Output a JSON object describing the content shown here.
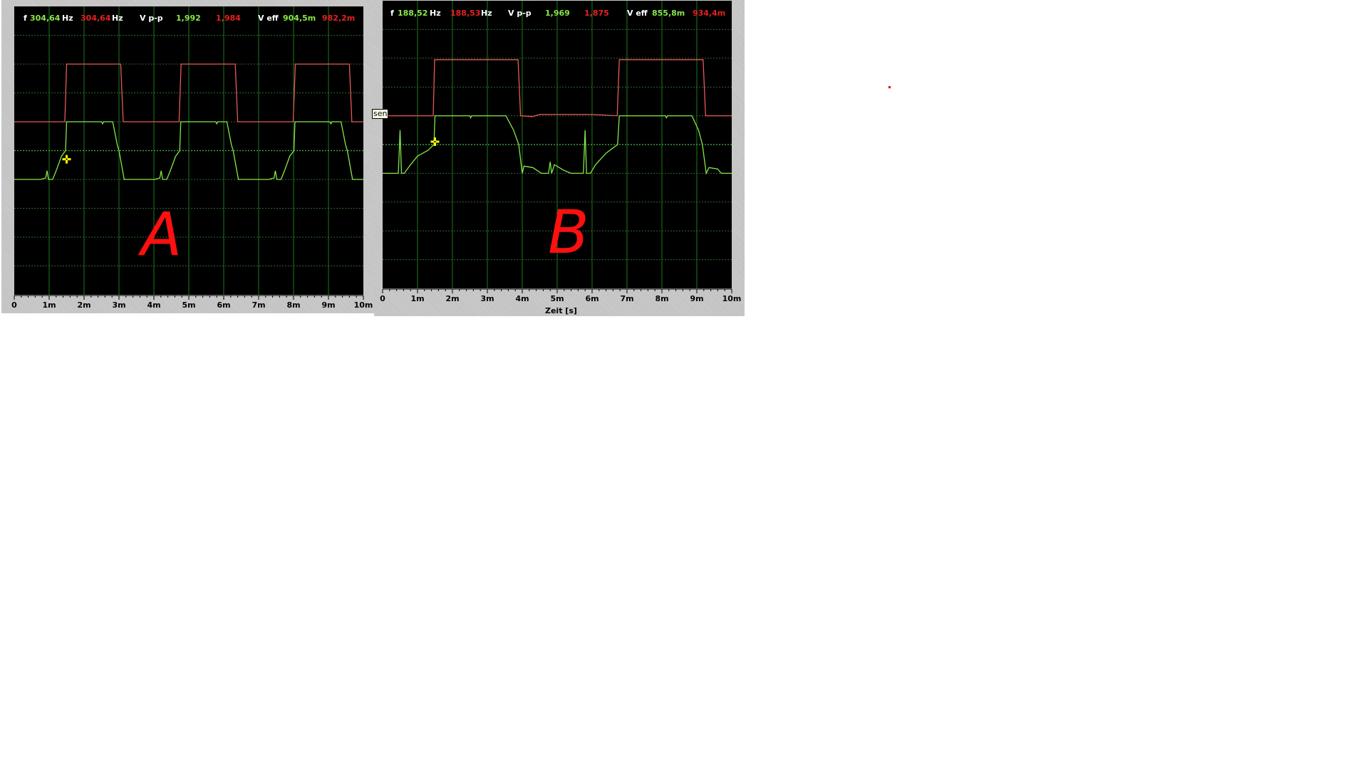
{
  "colors": {
    "trace_green": "#86e848",
    "trace_red": "#e85858",
    "grid": "#1c7a1c",
    "cursor": "#ffff00",
    "background": "#000000"
  },
  "tooltip_text": "sen",
  "chart_data": [
    {
      "type": "line",
      "annotation": "A",
      "readout": {
        "f_label": "f",
        "f_green": "304,64",
        "f_green_unit": "Hz",
        "f_red": "304,64",
        "f_red_unit": "Hz",
        "vpp_label": "V p-p",
        "vpp_green": "1,992",
        "vpp_red": "1,984",
        "veff_label": "V eff",
        "veff_green": "904,5m",
        "veff_red": "982,2m"
      },
      "xlim": [
        0,
        10
      ],
      "ylim": [
        -5,
        5
      ],
      "grid": true,
      "x_tick_labels": [
        "0",
        "1m",
        "2m",
        "3m",
        "4m",
        "5m",
        "6m",
        "7m",
        "8m",
        "9m",
        "10m"
      ],
      "xlabel": "",
      "cursor": [
        1.5,
        -0.3
      ],
      "series": [
        {
          "color": "red",
          "points": [
            [
              0,
              1
            ],
            [
              1.45,
              1
            ],
            [
              1.5,
              3
            ],
            [
              3.05,
              3
            ],
            [
              3.12,
              1
            ],
            [
              4.72,
              1
            ],
            [
              4.78,
              3
            ],
            [
              6.33,
              3
            ],
            [
              6.4,
              1
            ],
            [
              7.99,
              1
            ],
            [
              8.05,
              3
            ],
            [
              9.6,
              3
            ],
            [
              9.67,
              1
            ],
            [
              10,
              1
            ]
          ]
        },
        {
          "color": "green",
          "points": [
            [
              0,
              -1
            ],
            [
              0.75,
              -1
            ],
            [
              0.9,
              -0.95
            ],
            [
              0.94,
              -0.7
            ],
            [
              0.98,
              -1
            ],
            [
              1.1,
              -1
            ],
            [
              1.2,
              -0.7
            ],
            [
              1.35,
              -0.2
            ],
            [
              1.47,
              0
            ],
            [
              1.5,
              1
            ],
            [
              2.5,
              1
            ],
            [
              2.53,
              0.93
            ],
            [
              2.56,
              1
            ],
            [
              2.82,
              1
            ],
            [
              2.95,
              0.2
            ],
            [
              3.0,
              0
            ],
            [
              3.15,
              -1
            ],
            [
              4.02,
              -1
            ],
            [
              4.17,
              -0.95
            ],
            [
              4.21,
              -0.7
            ],
            [
              4.25,
              -1
            ],
            [
              4.37,
              -1
            ],
            [
              4.47,
              -0.7
            ],
            [
              4.62,
              -0.2
            ],
            [
              4.74,
              0
            ],
            [
              4.77,
              1
            ],
            [
              5.77,
              1
            ],
            [
              5.8,
              0.93
            ],
            [
              5.83,
              1
            ],
            [
              6.09,
              1
            ],
            [
              6.22,
              0.2
            ],
            [
              6.27,
              0
            ],
            [
              6.42,
              -1
            ],
            [
              7.29,
              -1
            ],
            [
              7.44,
              -0.95
            ],
            [
              7.48,
              -0.7
            ],
            [
              7.52,
              -1
            ],
            [
              7.64,
              -1
            ],
            [
              7.74,
              -0.7
            ],
            [
              7.89,
              -0.2
            ],
            [
              8.01,
              0
            ],
            [
              8.04,
              1
            ],
            [
              9.04,
              1
            ],
            [
              9.07,
              0.93
            ],
            [
              9.1,
              1
            ],
            [
              9.36,
              1
            ],
            [
              9.49,
              0.2
            ],
            [
              9.54,
              0
            ],
            [
              9.69,
              -1
            ],
            [
              10,
              -1
            ]
          ]
        }
      ]
    },
    {
      "type": "line",
      "annotation": "B",
      "readout": {
        "f_label": "f",
        "f_green": "188,52",
        "f_green_unit": "Hz",
        "f_red": "188,53",
        "f_red_unit": "Hz",
        "vpp_label": "V p-p",
        "vpp_green": "1,969",
        "vpp_red": "1,875",
        "veff_label": "V eff",
        "veff_green": "855,8m",
        "veff_red": "934,4m"
      },
      "xlim": [
        0,
        10
      ],
      "ylim": [
        -5,
        5
      ],
      "grid": true,
      "x_tick_labels": [
        "0",
        "1m",
        "2m",
        "3m",
        "4m",
        "5m",
        "6m",
        "7m",
        "8m",
        "9m",
        "10m"
      ],
      "xlabel": "Zeit [s]",
      "cursor": [
        1.5,
        0.1
      ],
      "series": [
        {
          "color": "red",
          "points": [
            [
              0,
              1.0
            ],
            [
              1.45,
              1.0
            ],
            [
              1.49,
              2.95
            ],
            [
              3.88,
              2.95
            ],
            [
              3.95,
              1.0
            ],
            [
              4.3,
              0.97
            ],
            [
              4.5,
              1.05
            ],
            [
              6.0,
              1.05
            ],
            [
              6.72,
              1.0
            ],
            [
              6.78,
              2.95
            ],
            [
              9.18,
              2.95
            ],
            [
              9.25,
              1.0
            ],
            [
              10,
              1.0
            ]
          ]
        },
        {
          "color": "green",
          "points": [
            [
              0,
              -1
            ],
            [
              0.45,
              -1
            ],
            [
              0.5,
              0.5
            ],
            [
              0.54,
              -1
            ],
            [
              0.62,
              -1
            ],
            [
              0.8,
              -0.7
            ],
            [
              1.0,
              -0.4
            ],
            [
              1.3,
              -0.2
            ],
            [
              1.47,
              0
            ],
            [
              1.5,
              1
            ],
            [
              2.5,
              1
            ],
            [
              2.52,
              0.93
            ],
            [
              2.55,
              1
            ],
            [
              3.53,
              1
            ],
            [
              3.75,
              0.5
            ],
            [
              3.9,
              0
            ],
            [
              4.0,
              -1
            ],
            [
              4.05,
              -0.75
            ],
            [
              4.3,
              -0.8
            ],
            [
              4.55,
              -1
            ],
            [
              4.75,
              -1
            ],
            [
              4.8,
              -0.6
            ],
            [
              4.84,
              -1
            ],
            [
              4.92,
              -0.7
            ],
            [
              5.2,
              -0.9
            ],
            [
              5.4,
              -1
            ],
            [
              5.75,
              -1
            ],
            [
              5.8,
              0.5
            ],
            [
              5.84,
              -1
            ],
            [
              5.95,
              -1
            ],
            [
              6.1,
              -0.7
            ],
            [
              6.4,
              -0.3
            ],
            [
              6.73,
              0
            ],
            [
              6.78,
              1
            ],
            [
              8.1,
              1
            ],
            [
              8.13,
              0.93
            ],
            [
              8.16,
              1
            ],
            [
              8.86,
              1
            ],
            [
              9.05,
              0.5
            ],
            [
              9.16,
              0
            ],
            [
              9.27,
              -1
            ],
            [
              9.35,
              -0.8
            ],
            [
              9.6,
              -0.85
            ],
            [
              9.7,
              -1
            ],
            [
              10,
              -1
            ]
          ]
        }
      ]
    }
  ]
}
